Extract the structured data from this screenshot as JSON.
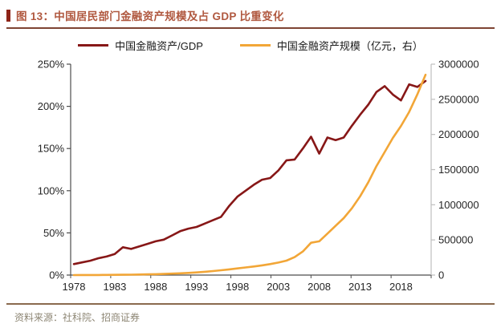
{
  "header": {
    "title": "图 13：中国居民部门金融资产规模及占 GDP 比重变化"
  },
  "footer": {
    "source": "资料来源：社科院、招商证券"
  },
  "colors": {
    "title_text": "#B0583F",
    "accent_bar": "#8E2418",
    "title_rule": "#7E4433",
    "footer_rule": "#8A6A4E",
    "footer_text": "#8D8674",
    "axis": "#4D4D4D",
    "axis_right": "#BFBFBF",
    "tick_text": "#262626",
    "series_ratio": "#871717",
    "series_scale": "#F2A637"
  },
  "chart_data": {
    "type": "line",
    "title": "中国居民部门金融资产规模及占 GDP 比重变化",
    "x": [
      1978,
      1979,
      1980,
      1981,
      1982,
      1983,
      1984,
      1985,
      1986,
      1987,
      1988,
      1989,
      1990,
      1991,
      1992,
      1993,
      1994,
      1995,
      1996,
      1997,
      1998,
      1999,
      2000,
      2001,
      2002,
      2003,
      2004,
      2005,
      2006,
      2007,
      2008,
      2009,
      2010,
      2011,
      2012,
      2013,
      2014,
      2015,
      2016,
      2017,
      2018,
      2019,
      2020,
      2021
    ],
    "series": [
      {
        "name": "中国金融资产/GDP",
        "axis": "left",
        "unit": "%",
        "color": "#871717",
        "values": [
          13,
          15,
          17,
          20,
          22,
          25,
          33,
          31,
          34,
          37,
          40,
          42,
          47,
          52,
          55,
          57,
          61,
          65,
          69,
          82,
          93,
          100,
          107,
          113,
          115,
          124,
          136,
          137,
          150,
          164,
          144,
          163,
          160,
          163,
          177,
          190,
          202,
          217,
          224,
          214,
          207,
          226,
          223,
          230
        ]
      },
      {
        "name": "中国金融资产规模（亿元，右）",
        "axis": "right",
        "unit": "亿元",
        "color": "#F2A637",
        "values": [
          400,
          600,
          1000,
          1500,
          2200,
          3000,
          4500,
          6000,
          8000,
          10500,
          13000,
          16000,
          20000,
          25000,
          31000,
          38000,
          47000,
          57000,
          69000,
          81000,
          95000,
          108000,
          122000,
          138000,
          156000,
          178000,
          205000,
          255000,
          335000,
          460000,
          480000,
          590000,
          700000,
          810000,
          950000,
          1120000,
          1320000,
          1550000,
          1750000,
          1950000,
          2120000,
          2320000,
          2570000,
          2850000
        ]
      }
    ],
    "left_axis": {
      "min": 0,
      "max": 250,
      "ticks": [
        "0%",
        "50%",
        "100%",
        "150%",
        "200%",
        "250%"
      ]
    },
    "right_axis": {
      "min": 0,
      "max": 3000000,
      "ticks": [
        "0",
        "500000",
        "1000000",
        "1500000",
        "2000000",
        "2500000",
        "3000000"
      ]
    },
    "x_ticks": [
      "1978",
      "1983",
      "1988",
      "1993",
      "1998",
      "2003",
      "2008",
      "2013",
      "2018"
    ],
    "legend_position": "top",
    "grid": "off"
  }
}
